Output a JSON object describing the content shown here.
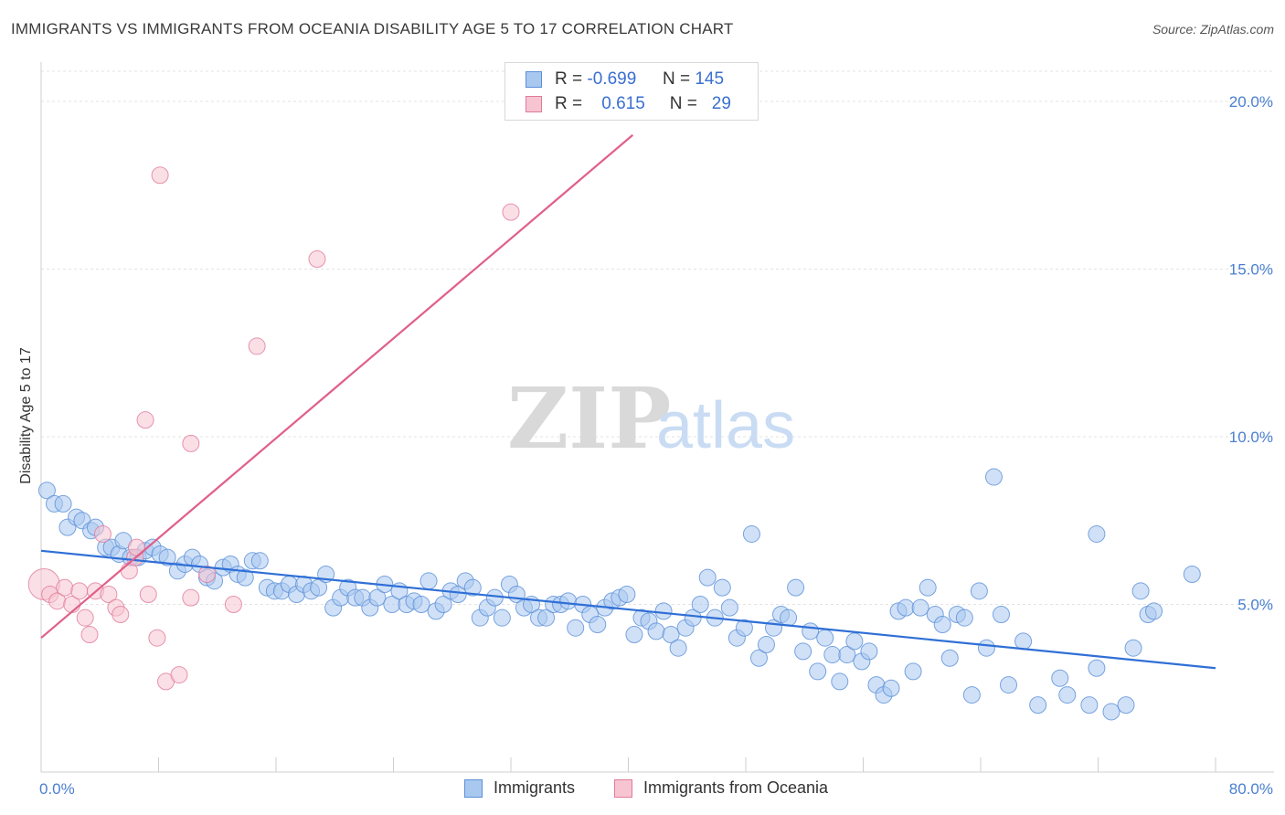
{
  "title": "IMMIGRANTS VS IMMIGRANTS FROM OCEANIA DISABILITY AGE 5 TO 17 CORRELATION CHART",
  "source": "Source: ZipAtlas.com",
  "watermark": {
    "zip": "ZIP",
    "atlas": "atlas"
  },
  "legend": {
    "rows": [
      {
        "r_label": "R =",
        "r_value": "-0.699",
        "n_label": "N =",
        "n_value": "145",
        "color": "#a9c8f0",
        "border": "#5a8fd8"
      },
      {
        "r_label": "R =",
        "r_value": "0.615",
        "n_label": "N =",
        "n_value": "29",
        "color": "#f7c4d2",
        "border": "#e07a9a"
      }
    ]
  },
  "bottom_legend": {
    "items": [
      {
        "label": "Immigrants",
        "color": "#a9c8f0",
        "border": "#5a8fd8"
      },
      {
        "label": "Immigrants from Oceania",
        "color": "#f7c4d2",
        "border": "#e07a9a"
      }
    ]
  },
  "chart_data": {
    "type": "scatter",
    "title": "IMMIGRANTS VS IMMIGRANTS FROM OCEANIA DISABILITY AGE 5 TO 17 CORRELATION CHART",
    "xlabel": "",
    "ylabel": "Disability Age 5 to 17",
    "xlim": [
      0,
      80
    ],
    "ylim": [
      0,
      20.9
    ],
    "x_tick_labels": [
      "0.0%",
      "80.0%"
    ],
    "y_ticks": [
      5,
      10,
      15,
      20
    ],
    "y_tick_labels": [
      "5.0%",
      "10.0%",
      "15.0%",
      "20.0%"
    ],
    "grid": true,
    "legend_position": "top-center",
    "series": [
      {
        "name": "Immigrants",
        "color": "#a9c8f0",
        "edge": "#5a8fd8",
        "trend": {
          "x": [
            0,
            80
          ],
          "y": [
            6.6,
            3.1
          ],
          "color": "#2f6fd6"
        },
        "points": [
          [
            0.4,
            8.4
          ],
          [
            0.9,
            8.0
          ],
          [
            1.5,
            8.0
          ],
          [
            1.8,
            7.3
          ],
          [
            2.4,
            7.6
          ],
          [
            2.8,
            7.5
          ],
          [
            3.4,
            7.2
          ],
          [
            3.7,
            7.3
          ],
          [
            4.4,
            6.7
          ],
          [
            4.8,
            6.7
          ],
          [
            5.3,
            6.5
          ],
          [
            5.6,
            6.9
          ],
          [
            6.1,
            6.4
          ],
          [
            6.6,
            6.4
          ],
          [
            7.1,
            6.6
          ],
          [
            7.6,
            6.7
          ],
          [
            8.1,
            6.5
          ],
          [
            8.6,
            6.4
          ],
          [
            9.3,
            6.0
          ],
          [
            9.8,
            6.2
          ],
          [
            10.3,
            6.4
          ],
          [
            10.8,
            6.2
          ],
          [
            11.3,
            5.8
          ],
          [
            11.8,
            5.7
          ],
          [
            12.4,
            6.1
          ],
          [
            12.9,
            6.2
          ],
          [
            13.4,
            5.9
          ],
          [
            13.9,
            5.8
          ],
          [
            14.4,
            6.3
          ],
          [
            14.9,
            6.3
          ],
          [
            15.4,
            5.5
          ],
          [
            15.9,
            5.4
          ],
          [
            16.4,
            5.4
          ],
          [
            16.9,
            5.6
          ],
          [
            17.4,
            5.3
          ],
          [
            17.9,
            5.6
          ],
          [
            18.4,
            5.4
          ],
          [
            18.9,
            5.5
          ],
          [
            19.4,
            5.9
          ],
          [
            19.9,
            4.9
          ],
          [
            20.4,
            5.2
          ],
          [
            20.9,
            5.5
          ],
          [
            21.4,
            5.2
          ],
          [
            21.9,
            5.2
          ],
          [
            22.4,
            4.9
          ],
          [
            22.9,
            5.2
          ],
          [
            23.4,
            5.6
          ],
          [
            23.9,
            5.0
          ],
          [
            24.4,
            5.4
          ],
          [
            24.9,
            5.0
          ],
          [
            25.4,
            5.1
          ],
          [
            25.9,
            5.0
          ],
          [
            26.4,
            5.7
          ],
          [
            26.9,
            4.8
          ],
          [
            27.4,
            5.0
          ],
          [
            27.9,
            5.4
          ],
          [
            28.4,
            5.3
          ],
          [
            28.9,
            5.7
          ],
          [
            29.4,
            5.5
          ],
          [
            29.9,
            4.6
          ],
          [
            30.4,
            4.9
          ],
          [
            30.9,
            5.2
          ],
          [
            31.4,
            4.6
          ],
          [
            31.9,
            5.6
          ],
          [
            32.4,
            5.3
          ],
          [
            32.9,
            4.9
          ],
          [
            33.4,
            5.0
          ],
          [
            33.9,
            4.6
          ],
          [
            34.4,
            4.6
          ],
          [
            34.9,
            5.0
          ],
          [
            35.4,
            5.0
          ],
          [
            35.9,
            5.1
          ],
          [
            36.4,
            4.3
          ],
          [
            36.9,
            5.0
          ],
          [
            37.4,
            4.7
          ],
          [
            37.9,
            4.4
          ],
          [
            38.4,
            4.9
          ],
          [
            38.9,
            5.1
          ],
          [
            39.4,
            5.2
          ],
          [
            39.9,
            5.3
          ],
          [
            40.4,
            4.1
          ],
          [
            40.9,
            4.6
          ],
          [
            41.4,
            4.5
          ],
          [
            41.9,
            4.2
          ],
          [
            42.4,
            4.8
          ],
          [
            42.9,
            4.1
          ],
          [
            43.4,
            3.7
          ],
          [
            43.9,
            4.3
          ],
          [
            44.4,
            4.6
          ],
          [
            44.9,
            5.0
          ],
          [
            45.4,
            5.8
          ],
          [
            45.9,
            4.6
          ],
          [
            46.4,
            5.5
          ],
          [
            46.9,
            4.9
          ],
          [
            47.4,
            4.0
          ],
          [
            47.9,
            4.3
          ],
          [
            48.4,
            7.1
          ],
          [
            48.9,
            3.4
          ],
          [
            49.4,
            3.8
          ],
          [
            49.9,
            4.3
          ],
          [
            50.4,
            4.7
          ],
          [
            50.9,
            4.6
          ],
          [
            51.4,
            5.5
          ],
          [
            51.9,
            3.6
          ],
          [
            52.4,
            4.2
          ],
          [
            52.9,
            3.0
          ],
          [
            53.4,
            4.0
          ],
          [
            53.9,
            3.5
          ],
          [
            54.4,
            2.7
          ],
          [
            54.9,
            3.5
          ],
          [
            55.4,
            3.9
          ],
          [
            55.9,
            3.3
          ],
          [
            56.4,
            3.6
          ],
          [
            56.9,
            2.6
          ],
          [
            57.4,
            2.3
          ],
          [
            57.9,
            2.5
          ],
          [
            58.4,
            4.8
          ],
          [
            58.9,
            4.9
          ],
          [
            59.4,
            3.0
          ],
          [
            59.9,
            4.9
          ],
          [
            60.4,
            5.5
          ],
          [
            60.9,
            4.7
          ],
          [
            61.4,
            4.4
          ],
          [
            61.9,
            3.4
          ],
          [
            62.4,
            4.7
          ],
          [
            62.9,
            4.6
          ],
          [
            63.4,
            2.3
          ],
          [
            63.9,
            5.4
          ],
          [
            64.4,
            3.7
          ],
          [
            64.9,
            8.8
          ],
          [
            65.4,
            4.7
          ],
          [
            65.9,
            2.6
          ],
          [
            66.9,
            3.9
          ],
          [
            67.9,
            2.0
          ],
          [
            69.4,
            2.8
          ],
          [
            69.9,
            2.3
          ],
          [
            71.4,
            2.0
          ],
          [
            71.9,
            3.1
          ],
          [
            71.9,
            7.1
          ],
          [
            72.9,
            1.8
          ],
          [
            73.9,
            2.0
          ],
          [
            74.4,
            3.7
          ],
          [
            74.9,
            5.4
          ],
          [
            75.4,
            4.7
          ],
          [
            75.8,
            4.8
          ],
          [
            78.4,
            5.9
          ]
        ]
      },
      {
        "name": "Immigrants from Oceania",
        "color": "#f7c4d2",
        "edge": "#e07a9a",
        "trend": {
          "x": [
            0,
            40.3
          ],
          "y": [
            4.0,
            19.0
          ],
          "color": "#e0608a"
        },
        "points": [
          [
            0.2,
            5.6
          ],
          [
            0.6,
            5.3
          ],
          [
            1.1,
            5.1
          ],
          [
            1.6,
            5.5
          ],
          [
            2.1,
            5.0
          ],
          [
            2.6,
            5.4
          ],
          [
            3.0,
            4.6
          ],
          [
            3.3,
            4.1
          ],
          [
            3.7,
            5.4
          ],
          [
            4.2,
            7.1
          ],
          [
            4.6,
            5.3
          ],
          [
            5.1,
            4.9
          ],
          [
            5.4,
            4.7
          ],
          [
            6.0,
            6.0
          ],
          [
            6.4,
            6.4
          ],
          [
            6.5,
            6.7
          ],
          [
            7.1,
            10.5
          ],
          [
            7.3,
            5.3
          ],
          [
            7.9,
            4.0
          ],
          [
            8.1,
            17.8
          ],
          [
            8.5,
            2.7
          ],
          [
            9.4,
            2.9
          ],
          [
            10.2,
            5.2
          ],
          [
            10.2,
            9.8
          ],
          [
            11.3,
            5.9
          ],
          [
            13.1,
            5.0
          ],
          [
            14.7,
            12.7
          ],
          [
            18.8,
            15.3
          ],
          [
            32.0,
            16.7
          ]
        ]
      }
    ]
  }
}
